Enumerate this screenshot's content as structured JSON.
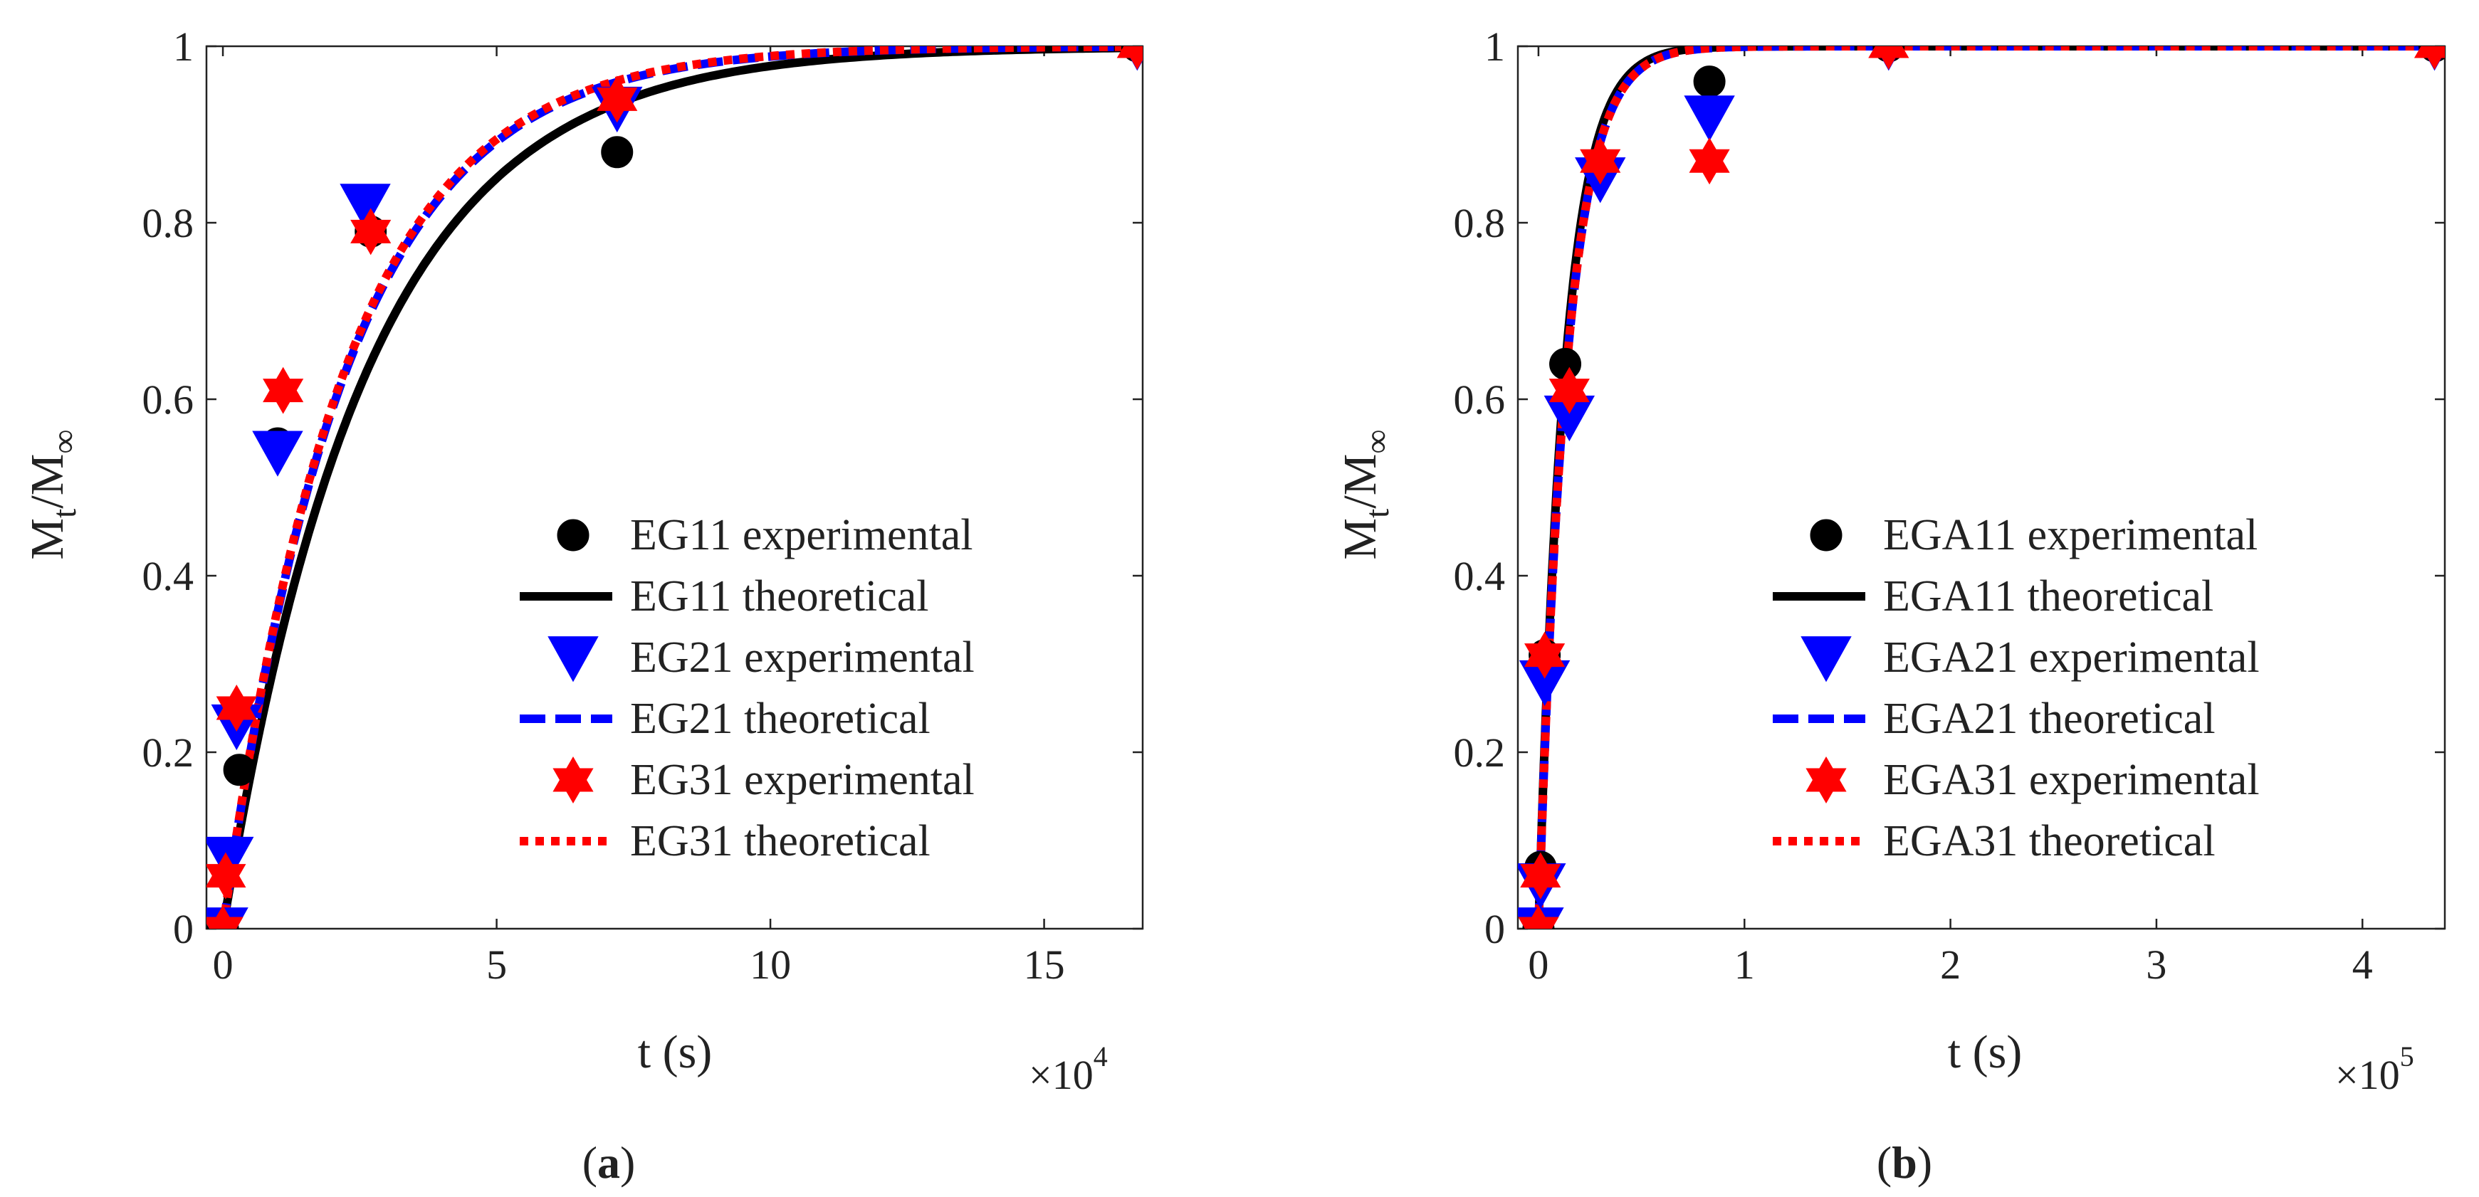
{
  "chart_data": [
    {
      "type": "line",
      "panel_label": "a",
      "xlabel": "t (s)",
      "ylabel_main": "M",
      "ylabel_sub1": "t",
      "ylabel_mid": "/M",
      "ylabel_sub2": "∞",
      "x_multiplier_base": "×10",
      "x_multiplier_exp": "4",
      "x_scale": 10000,
      "xlim": [
        -0.3,
        16.8
      ],
      "ylim": [
        0,
        1
      ],
      "xticks": [
        {
          "v": 0,
          "label": "0"
        },
        {
          "v": 5,
          "label": "5"
        },
        {
          "v": 10,
          "label": "10"
        },
        {
          "v": 15,
          "label": "15"
        }
      ],
      "yticks": [
        {
          "v": 0,
          "label": "0"
        },
        {
          "v": 0.2,
          "label": "0.2"
        },
        {
          "v": 0.4,
          "label": "0.4"
        },
        {
          "v": 0.6,
          "label": "0.6"
        },
        {
          "v": 0.8,
          "label": "0.8"
        },
        {
          "v": 1,
          "label": "1"
        }
      ],
      "grid": false,
      "legend_position": "lower-right",
      "series": [
        {
          "name": "EG11 experimental",
          "kind": "marker",
          "marker": "circle",
          "color": "#000000",
          "x": [
            0,
            0.3,
            1.0,
            2.7,
            7.2,
            16.7
          ],
          "y": [
            0,
            0.18,
            0.55,
            0.79,
            0.88,
            1.0
          ]
        },
        {
          "name": "EG11 theoretical",
          "kind": "line",
          "style": "solid",
          "color": "#000000",
          "k": 0.38,
          "x_end": 16.8
        },
        {
          "name": "EG21 experimental",
          "kind": "marker",
          "marker": "triangle-down",
          "color": "#0000ff",
          "x": [
            0,
            0.1,
            0.25,
            1.0,
            2.6,
            7.2,
            16.7
          ],
          "y": [
            0,
            0.08,
            0.23,
            0.54,
            0.82,
            0.93,
            1.0
          ]
        },
        {
          "name": "EG21 theoretical",
          "kind": "line",
          "style": "dashed",
          "color": "#0000ff",
          "k": 0.445,
          "x_end": 16.8
        },
        {
          "name": "EG31 experimental",
          "kind": "marker",
          "marker": "hexagram",
          "color": "#ff0000",
          "x": [
            0,
            0.05,
            0.25,
            1.1,
            2.7,
            7.2,
            16.7
          ],
          "y": [
            0,
            0.06,
            0.25,
            0.61,
            0.79,
            0.94,
            1.0
          ]
        },
        {
          "name": "EG31 theoretical",
          "kind": "line",
          "style": "dotted",
          "color": "#ff0000",
          "k": 0.45,
          "x_end": 16.8
        }
      ]
    },
    {
      "type": "line",
      "panel_label": "b",
      "xlabel": "t (s)",
      "ylabel_main": "M",
      "ylabel_sub1": "t",
      "ylabel_mid": "/M",
      "ylabel_sub2": "∞",
      "x_multiplier_base": "×10",
      "x_multiplier_exp": "5",
      "x_scale": 100000,
      "xlim": [
        -0.1,
        4.4
      ],
      "ylim": [
        0,
        1
      ],
      "xticks": [
        {
          "v": 0,
          "label": "0"
        },
        {
          "v": 1,
          "label": "1"
        },
        {
          "v": 2,
          "label": "2"
        },
        {
          "v": 3,
          "label": "3"
        },
        {
          "v": 4,
          "label": "4"
        }
      ],
      "yticks": [
        {
          "v": 0,
          "label": "0"
        },
        {
          "v": 0.2,
          "label": "0.2"
        },
        {
          "v": 0.4,
          "label": "0.4"
        },
        {
          "v": 0.6,
          "label": "0.6"
        },
        {
          "v": 0.8,
          "label": "0.8"
        },
        {
          "v": 1,
          "label": "1"
        }
      ],
      "grid": false,
      "legend_position": "lower-right",
      "series": [
        {
          "name": "EGA11 experimental",
          "kind": "marker",
          "marker": "circle",
          "color": "#000000",
          "x": [
            0,
            0.01,
            0.03,
            0.13,
            0.3,
            0.83,
            1.7,
            4.35
          ],
          "y": [
            0,
            0.07,
            0.31,
            0.64,
            0.86,
            0.96,
            1.0,
            1.0
          ]
        },
        {
          "name": "EGA11 theoretical",
          "kind": "line",
          "style": "solid",
          "color": "#000000",
          "k": 7.8,
          "x_end": 4.4
        },
        {
          "name": "EGA21 experimental",
          "kind": "marker",
          "marker": "triangle-down",
          "color": "#0000ff",
          "x": [
            0,
            0.01,
            0.03,
            0.15,
            0.3,
            0.83,
            1.7,
            4.35
          ],
          "y": [
            0,
            0.05,
            0.28,
            0.58,
            0.85,
            0.92,
            1.0,
            1.0
          ]
        },
        {
          "name": "EGA21 theoretical",
          "kind": "line",
          "style": "dashed",
          "color": "#0000ff",
          "k": 7.4,
          "x_end": 4.4
        },
        {
          "name": "EGA31 experimental",
          "kind": "marker",
          "marker": "hexagram",
          "color": "#ff0000",
          "x": [
            0,
            0.01,
            0.03,
            0.15,
            0.3,
            0.83,
            1.7,
            4.35
          ],
          "y": [
            0,
            0.06,
            0.31,
            0.61,
            0.87,
            0.87,
            1.0,
            1.0
          ]
        },
        {
          "name": "EGA31 theoretical",
          "kind": "line",
          "style": "dotted",
          "color": "#ff0000",
          "k": 7.4,
          "x_end": 4.4
        }
      ]
    }
  ]
}
